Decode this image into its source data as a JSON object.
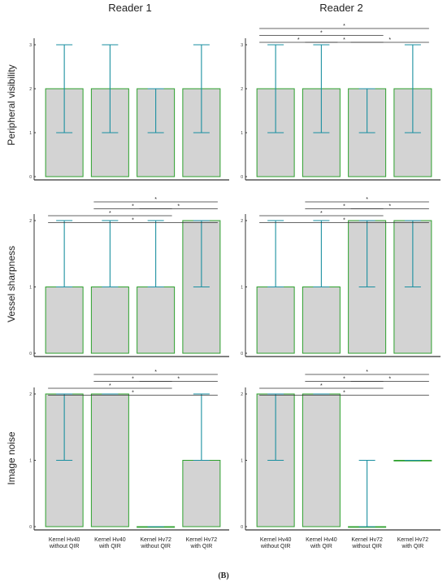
{
  "column_titles": [
    "Reader 1",
    "Reader 2"
  ],
  "row_titles": [
    "Peripheral visibility",
    "Vessel sharpness",
    "Image noise"
  ],
  "caption": "(B)",
  "colors": {
    "box_fill": "#d3d3d3",
    "box_stroke": "#2ca02c",
    "whisker": "#1a8fa0",
    "axis": "#333333",
    "sig": "#333333"
  },
  "chart_data": [
    {
      "type": "box",
      "reader": "Reader 1",
      "metric": "Peripheral visibility",
      "categories": [
        "Kernel Hv40 without QIR",
        "Kernel Hv40 with QIR",
        "Kernel Hv72 without QIR",
        "Kernel Hv72 with QIR"
      ],
      "yticks": [
        "0",
        "1",
        "2",
        "3"
      ],
      "ylim": [
        0,
        3
      ],
      "boxes": [
        {
          "q1": 0,
          "q3": 2,
          "wlo": 1,
          "whi": 3
        },
        {
          "q1": 0,
          "q3": 2,
          "wlo": 1,
          "whi": 3
        },
        {
          "q1": 0,
          "q3": 2,
          "wlo": 1,
          "whi": 2
        },
        {
          "q1": 0,
          "q3": 2,
          "wlo": 1,
          "whi": 3
        }
      ],
      "significance": []
    },
    {
      "type": "box",
      "reader": "Reader 2",
      "metric": "Peripheral visibility",
      "categories": [
        "Kernel Hv40 without QIR",
        "Kernel Hv40 with QIR",
        "Kernel Hv72 without QIR",
        "Kernel Hv72 with QIR"
      ],
      "yticks": [
        "0",
        "1",
        "2",
        "3"
      ],
      "ylim": [
        0,
        3
      ],
      "boxes": [
        {
          "q1": 0,
          "q3": 2,
          "wlo": 1,
          "whi": 3
        },
        {
          "q1": 0,
          "q3": 2,
          "wlo": 1,
          "whi": 3
        },
        {
          "q1": 0,
          "q3": 2,
          "wlo": 1,
          "whi": 2
        },
        {
          "q1": 0,
          "q3": 2,
          "wlo": 1,
          "whi": 3
        }
      ],
      "significance": [
        {
          "from": 0,
          "to": 3,
          "level": 0,
          "label": "*"
        },
        {
          "from": 0,
          "to": 2,
          "level": 1,
          "label": "*"
        },
        {
          "from": 0,
          "to": 1,
          "level": 2,
          "label": "*"
        },
        {
          "from": 1,
          "to": 2,
          "level": 2,
          "label": "*"
        },
        {
          "from": 2,
          "to": 3,
          "level": 2,
          "label": "*"
        }
      ]
    },
    {
      "type": "box",
      "reader": "Reader 1",
      "metric": "Vessel sharpness",
      "categories": [
        "Kernel Hv40 without QIR",
        "Kernel Hv40 with QIR",
        "Kernel Hv72 without QIR",
        "Kernel Hv72 with QIR"
      ],
      "yticks": [
        "0",
        "1",
        "2"
      ],
      "ylim": [
        0,
        2
      ],
      "boxes": [
        {
          "q1": 0,
          "q3": 1,
          "wlo": 1,
          "whi": 2
        },
        {
          "q1": 0,
          "q3": 1,
          "wlo": 1,
          "whi": 2
        },
        {
          "q1": 0,
          "q3": 1,
          "wlo": 1,
          "whi": 2
        },
        {
          "q1": 0,
          "q3": 2,
          "wlo": 1,
          "whi": 2
        }
      ],
      "significance": [
        {
          "from": 1,
          "to": 3,
          "level": 0,
          "label": "*"
        },
        {
          "from": 1,
          "to": 2,
          "level": 1,
          "label": "*"
        },
        {
          "from": 2,
          "to": 3,
          "level": 1,
          "label": "*"
        },
        {
          "from": 0,
          "to": 2,
          "level": 2,
          "label": "*"
        },
        {
          "from": 0,
          "to": 3,
          "level": 3,
          "label": "*"
        }
      ]
    },
    {
      "type": "box",
      "reader": "Reader 2",
      "metric": "Vessel sharpness",
      "categories": [
        "Kernel Hv40 without QIR",
        "Kernel Hv40 with QIR",
        "Kernel Hv72 without QIR",
        "Kernel Hv72 with QIR"
      ],
      "yticks": [
        "0",
        "1",
        "2"
      ],
      "ylim": [
        0,
        2
      ],
      "boxes": [
        {
          "q1": 0,
          "q3": 1,
          "wlo": 1,
          "whi": 2
        },
        {
          "q1": 0,
          "q3": 1,
          "wlo": 1,
          "whi": 2
        },
        {
          "q1": 0,
          "q3": 2,
          "wlo": 1,
          "whi": 2
        },
        {
          "q1": 0,
          "q3": 2,
          "wlo": 1,
          "whi": 2
        }
      ],
      "significance": [
        {
          "from": 1,
          "to": 3,
          "level": 0,
          "label": "*"
        },
        {
          "from": 1,
          "to": 2,
          "level": 1,
          "label": "*"
        },
        {
          "from": 2,
          "to": 3,
          "level": 1,
          "label": "*"
        },
        {
          "from": 0,
          "to": 2,
          "level": 2,
          "label": "*"
        },
        {
          "from": 0,
          "to": 3,
          "level": 3,
          "label": "*"
        }
      ]
    },
    {
      "type": "box",
      "reader": "Reader 1",
      "metric": "Image noise",
      "categories": [
        "Kernel Hv40 without QIR",
        "Kernel Hv40 with QIR",
        "Kernel Hv72 without QIR",
        "Kernel Hv72 with QIR"
      ],
      "category_lines": [
        [
          "Kernel Hv40",
          "without QIR"
        ],
        [
          "Kernel Hv40",
          "with QIR"
        ],
        [
          "Kernel Hv72",
          "without QIR"
        ],
        [
          "Kernel Hv72",
          "with QIR"
        ]
      ],
      "yticks": [
        "0",
        "1",
        "2"
      ],
      "ylim": [
        0,
        2
      ],
      "boxes": [
        {
          "q1": 0,
          "q3": 2,
          "wlo": 1,
          "whi": 2
        },
        {
          "q1": 0,
          "q3": 2,
          "wlo": 2,
          "whi": 2
        },
        {
          "q1": 0,
          "q3": 0,
          "wlo": 0,
          "whi": 0
        },
        {
          "q1": 0,
          "q3": 1,
          "wlo": 1,
          "whi": 2
        }
      ],
      "significance": [
        {
          "from": 1,
          "to": 3,
          "level": 0,
          "label": "*"
        },
        {
          "from": 1,
          "to": 2,
          "level": 1,
          "label": "*"
        },
        {
          "from": 2,
          "to": 3,
          "level": 1,
          "label": "*"
        },
        {
          "from": 0,
          "to": 2,
          "level": 2,
          "label": "*"
        },
        {
          "from": 0,
          "to": 3,
          "level": 3,
          "label": "*"
        }
      ]
    },
    {
      "type": "box",
      "reader": "Reader 2",
      "metric": "Image noise",
      "categories": [
        "Kernel Hv40 without QIR",
        "Kernel Hv40 with QIR",
        "Kernel Hv72 without QIR",
        "Kernel Hv72 with QIR"
      ],
      "category_lines": [
        [
          "Kernel Hv40",
          "without QIR"
        ],
        [
          "Kernel Hv40",
          "with QIR"
        ],
        [
          "Kernel Hv72",
          "without QIR"
        ],
        [
          "Kernel Hv72",
          "with QIR"
        ]
      ],
      "yticks": [
        "0",
        "1",
        "2"
      ],
      "ylim": [
        0,
        2
      ],
      "boxes": [
        {
          "q1": 0,
          "q3": 2,
          "wlo": 1,
          "whi": 2
        },
        {
          "q1": 0,
          "q3": 2,
          "wlo": 2,
          "whi": 2
        },
        {
          "q1": 0,
          "q3": 0,
          "wlo": 0,
          "whi": 1
        },
        {
          "q1": 1,
          "q3": 1,
          "wlo": 1,
          "whi": 1
        }
      ],
      "significance": [
        {
          "from": 1,
          "to": 3,
          "level": 0,
          "label": "*"
        },
        {
          "from": 1,
          "to": 2,
          "level": 1,
          "label": "*"
        },
        {
          "from": 2,
          "to": 3,
          "level": 1,
          "label": "*"
        },
        {
          "from": 0,
          "to": 2,
          "level": 2,
          "label": "*"
        },
        {
          "from": 0,
          "to": 3,
          "level": 3,
          "label": "*"
        }
      ]
    }
  ]
}
